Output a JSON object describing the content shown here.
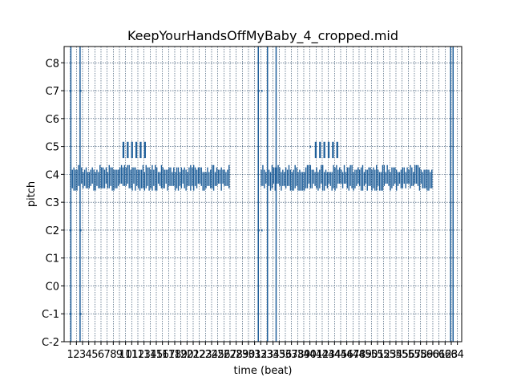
{
  "chart_data": {
    "type": "piano-roll",
    "title": "KeepYourHandsOffMyBaby_4_cropped.mid",
    "xlabel": "time (beat)",
    "ylabel": "pitch",
    "xlim": [
      0,
      64.7
    ],
    "ylim": [
      0,
      127
    ],
    "grid": true,
    "x_ticks": [
      1,
      2,
      3,
      4,
      5,
      6,
      7,
      8,
      9,
      10,
      11,
      12,
      13,
      14,
      15,
      16,
      17,
      18,
      19,
      20,
      21,
      22,
      23,
      24,
      25,
      26,
      27,
      28,
      29,
      30,
      31,
      32,
      33,
      34,
      35,
      36,
      37,
      38,
      39,
      40,
      41,
      42,
      43,
      44,
      45,
      46,
      47,
      48,
      49,
      50,
      51,
      52,
      53,
      54,
      55,
      56,
      57,
      58,
      59,
      60,
      61,
      62,
      63,
      64
    ],
    "y_ticks": [
      {
        "label": "C-2",
        "pitch": 0
      },
      {
        "label": "C-1",
        "pitch": 12
      },
      {
        "label": "C0",
        "pitch": 24
      },
      {
        "label": "C1",
        "pitch": 36
      },
      {
        "label": "C2",
        "pitch": 48
      },
      {
        "label": "C3",
        "pitch": 60
      },
      {
        "label": "C4",
        "pitch": 72
      },
      {
        "label": "C5",
        "pitch": 84
      },
      {
        "label": "C6",
        "pitch": 96
      },
      {
        "label": "C7",
        "pitch": 108
      },
      {
        "label": "C8",
        "pitch": 120
      }
    ],
    "note_color": "#1f5f9a",
    "grid_color": "#1a3a5a",
    "notes": [
      {
        "start": 1.0,
        "dur": 0.15,
        "pitch_low": 0,
        "pitch_high": 127
      },
      {
        "start": 2.5,
        "dur": 0.15,
        "pitch_low": 0,
        "pitch_high": 127
      },
      {
        "start": 31.5,
        "dur": 0.15,
        "pitch_low": 0,
        "pitch_high": 127
      },
      {
        "start": 33.0,
        "dur": 0.15,
        "pitch_low": 0,
        "pitch_high": 127
      },
      {
        "start": 34.4,
        "dur": 0.15,
        "pitch_low": 0,
        "pitch_high": 127
      },
      {
        "start": 62.8,
        "dur": 0.15,
        "pitch_low": 0,
        "pitch_high": 127
      },
      {
        "start": 63.2,
        "dur": 0.15,
        "pitch_low": 0,
        "pitch_high": 127
      },
      {
        "start": 9.5,
        "dur": 0.3,
        "pitch_low": 79,
        "pitch_high": 86
      },
      {
        "start": 10.2,
        "dur": 0.3,
        "pitch_low": 79,
        "pitch_high": 86
      },
      {
        "start": 10.9,
        "dur": 0.3,
        "pitch_low": 79,
        "pitch_high": 86
      },
      {
        "start": 11.6,
        "dur": 0.3,
        "pitch_low": 79,
        "pitch_high": 86
      },
      {
        "start": 12.3,
        "dur": 0.3,
        "pitch_low": 79,
        "pitch_high": 86
      },
      {
        "start": 13.0,
        "dur": 0.3,
        "pitch_low": 79,
        "pitch_high": 86
      },
      {
        "start": 40.8,
        "dur": 0.3,
        "pitch_low": 79,
        "pitch_high": 86
      },
      {
        "start": 41.5,
        "dur": 0.3,
        "pitch_low": 79,
        "pitch_high": 86
      },
      {
        "start": 42.2,
        "dur": 0.3,
        "pitch_low": 79,
        "pitch_high": 86
      },
      {
        "start": 42.9,
        "dur": 0.3,
        "pitch_low": 79,
        "pitch_high": 86
      },
      {
        "start": 43.6,
        "dur": 0.3,
        "pitch_low": 79,
        "pitch_high": 86
      },
      {
        "start": 44.3,
        "dur": 0.3,
        "pitch_low": 79,
        "pitch_high": 86
      }
    ],
    "dense_regions": [
      {
        "start": 1.0,
        "end": 27.0,
        "pitch_low": 65,
        "pitch_high": 76
      },
      {
        "start": 32.0,
        "end": 60.0,
        "pitch_low": 65,
        "pitch_high": 76
      }
    ],
    "small_marks": [
      {
        "start": 0.9,
        "pitch": 108
      },
      {
        "start": 2.6,
        "pitch": 108
      },
      {
        "start": 0.9,
        "pitch": 48
      },
      {
        "start": 2.6,
        "pitch": 48
      },
      {
        "start": 31.6,
        "pitch": 108
      },
      {
        "start": 32.1,
        "pitch": 108
      },
      {
        "start": 31.6,
        "pitch": 48
      },
      {
        "start": 32.1,
        "pitch": 48
      },
      {
        "start": 0.9,
        "pitch": 12
      },
      {
        "start": 2.6,
        "pitch": 12
      },
      {
        "start": 40.0,
        "pitch": 84
      }
    ]
  }
}
